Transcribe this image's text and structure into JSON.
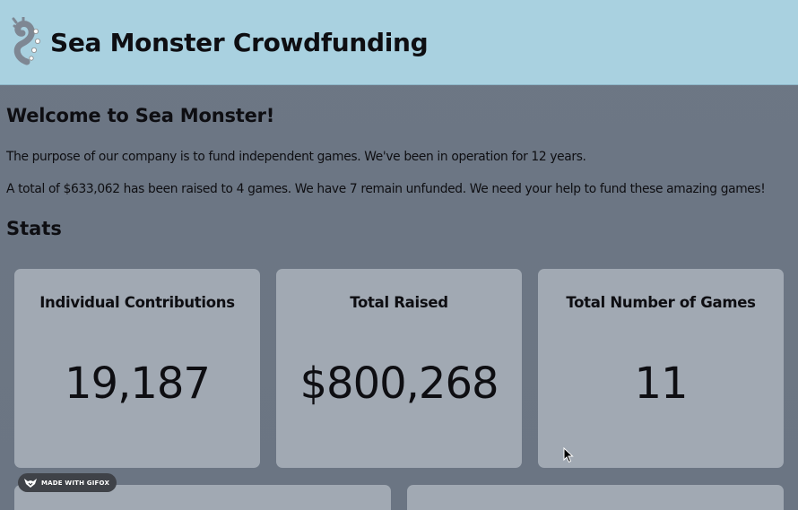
{
  "header": {
    "title": "Sea Monster Crowdfunding",
    "logo_icon": "sea-monster-tentacle-logo"
  },
  "welcome": {
    "heading": "Welcome to Sea Monster!",
    "paragraph1": "The purpose of our company is to fund independent games. We've been in operation for 12 years.",
    "paragraph2": "A total of $633,062 has been raised to 4 games. We have 7 remain unfunded. We need your help to fund these amazing games!"
  },
  "stats": {
    "heading": "Stats",
    "cards": [
      {
        "title": "Individual Contributions",
        "value": "19,187"
      },
      {
        "title": "Total Raised",
        "value": "$800,268"
      },
      {
        "title": "Total Number of Games",
        "value": "11"
      }
    ]
  },
  "overlay": {
    "badge_label": "MADE WITH GIFOX",
    "badge_icon": "fox-icon"
  },
  "colors": {
    "header_bg": "#a9d1e0",
    "page_bg": "#6d7784",
    "card_bg": "#a1a9b3"
  }
}
